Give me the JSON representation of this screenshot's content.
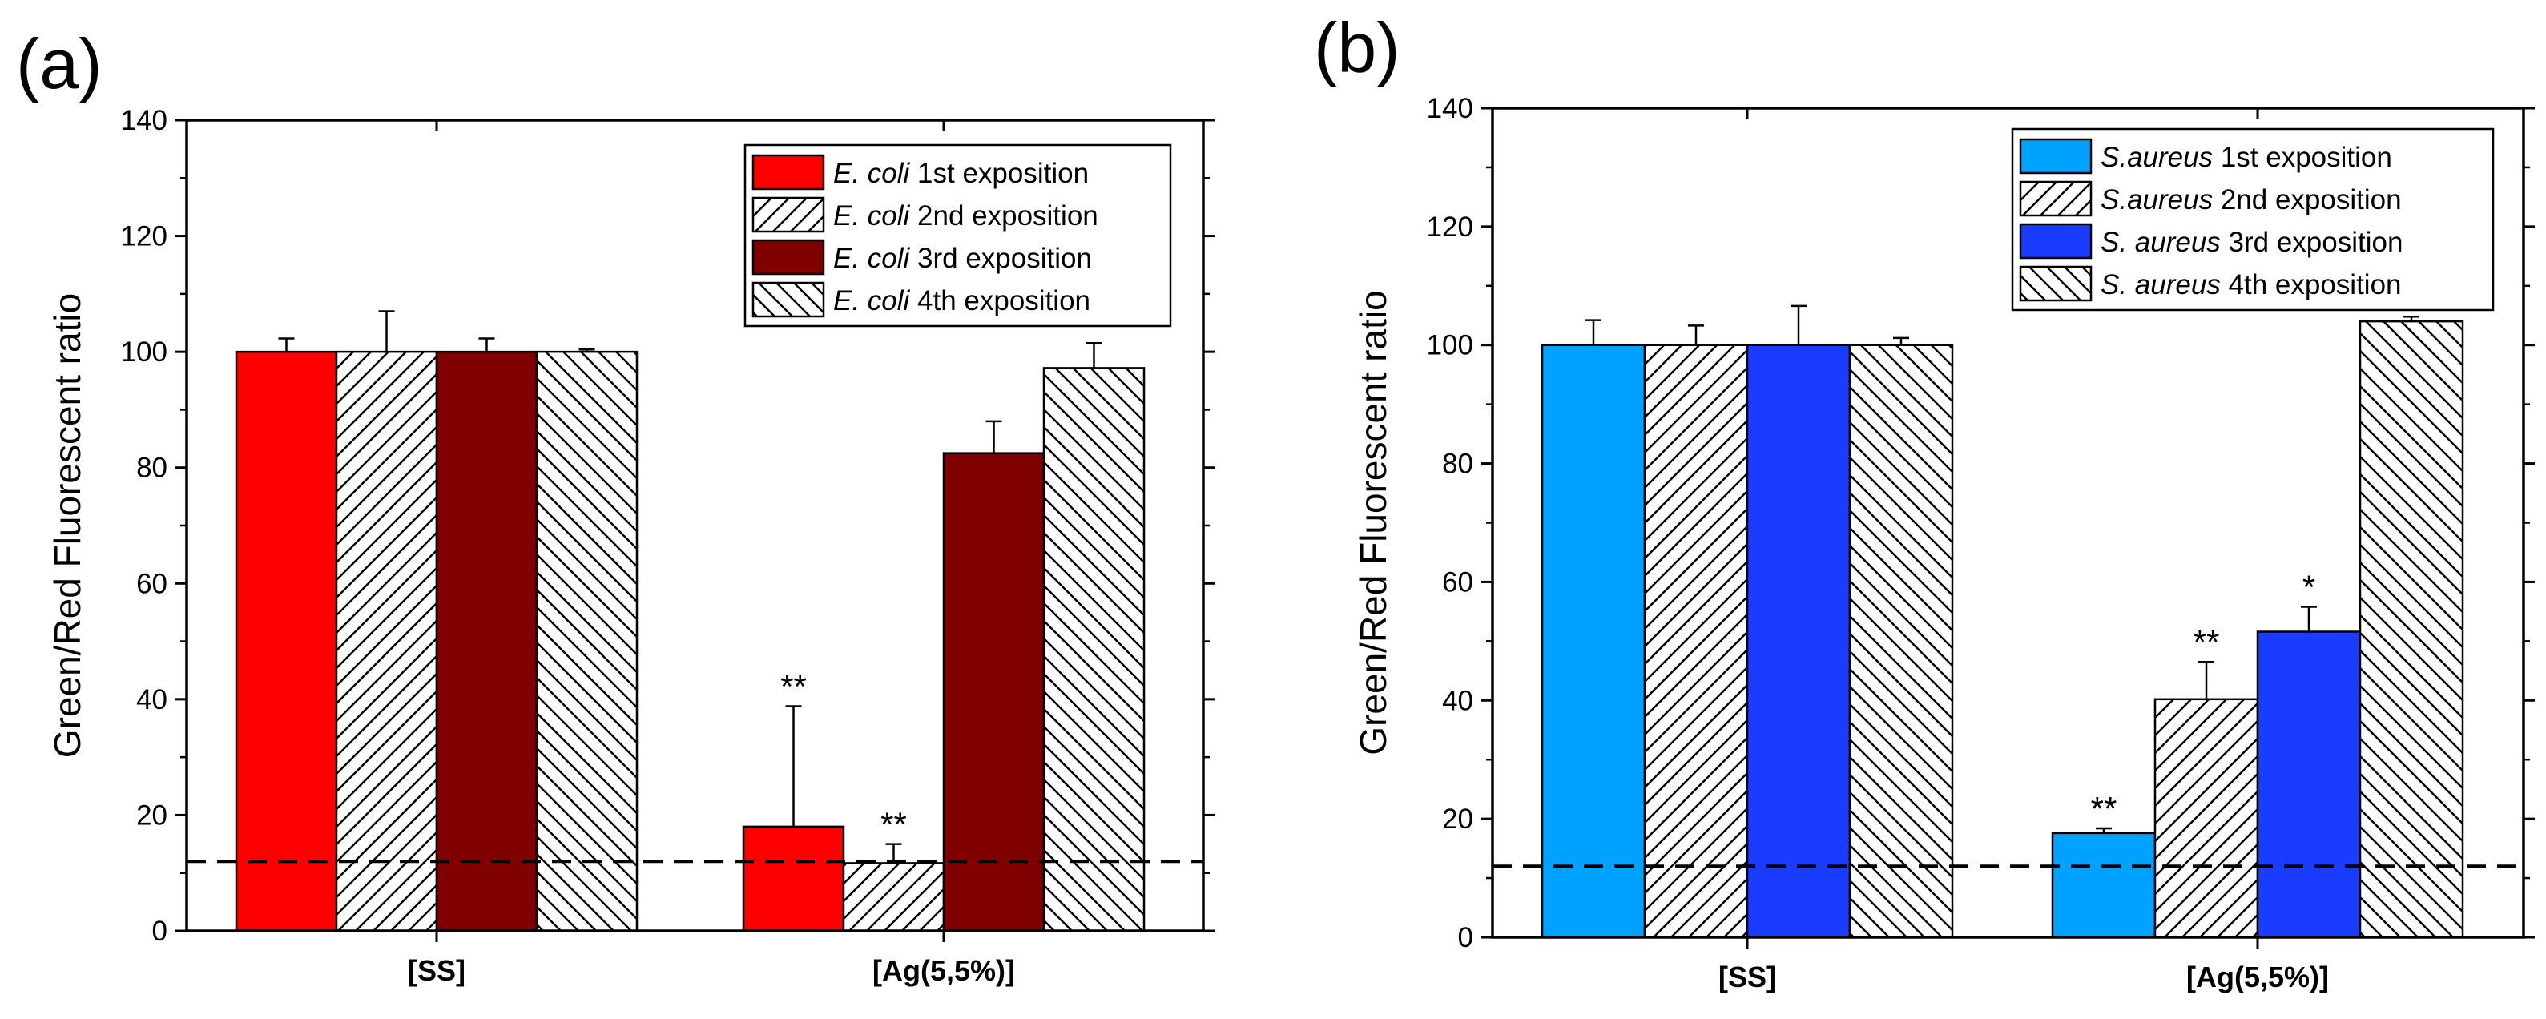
{
  "chart_data": [
    {
      "type": "bar",
      "panel_label": "(a)",
      "ylabel": "Green/Red Fluorescent ratio",
      "xlabel": "",
      "ylim": [
        0,
        140
      ],
      "yticks": [
        "0",
        "20",
        "40",
        "60",
        "80",
        "100",
        "120",
        "140"
      ],
      "categories": [
        "[SS]",
        "[Ag(5,5%)]"
      ],
      "reference_line": 12,
      "legend_position": "top-right",
      "series": [
        {
          "name": "E. coli 1st exposition",
          "species": "E. coli",
          "suffix": " 1st exposition",
          "fill": "solid",
          "color": "#ff0000",
          "values": [
            100,
            18
          ],
          "errors": [
            2.3,
            20.8
          ],
          "significance": [
            "",
            "**"
          ]
        },
        {
          "name": "E. coli 2nd exposition",
          "species": "E. coli",
          "suffix": " 2nd exposition",
          "fill": "hatch-forward",
          "color": "#ffffff",
          "values": [
            100,
            11.7
          ],
          "errors": [
            7,
            3.3
          ],
          "significance": [
            "",
            "**"
          ]
        },
        {
          "name": "E. coli 3rd exposition",
          "species": "E. coli",
          "suffix": " 3rd exposition",
          "fill": "solid",
          "color": "#800000",
          "values": [
            100,
            82.5
          ],
          "errors": [
            2.3,
            5.5
          ],
          "significance": [
            "",
            ""
          ]
        },
        {
          "name": "E. coli 4th exposition",
          "species": "E. coli",
          "suffix": " 4th exposition",
          "fill": "hatch-back",
          "color": "#ffffff",
          "values": [
            100,
            97.2
          ],
          "errors": [
            0.4,
            4.3
          ],
          "significance": [
            "",
            ""
          ]
        }
      ]
    },
    {
      "type": "bar",
      "panel_label": "(b)",
      "ylabel": "Green/Red Fluorescent ratio",
      "xlabel": "",
      "ylim": [
        0,
        140
      ],
      "yticks": [
        "0",
        "20",
        "40",
        "60",
        "80",
        "100",
        "120",
        "140"
      ],
      "categories": [
        "[SS]",
        "[Ag(5,5%)]"
      ],
      "reference_line": 12,
      "legend_position": "top-right",
      "series": [
        {
          "name": "S.aureus 1st exposition",
          "species": "S.aureus",
          "suffix": " 1st exposition",
          "fill": "solid",
          "color": "#00a2ff",
          "values": [
            100,
            17.6
          ],
          "errors": [
            4.2,
            0.8
          ],
          "significance": [
            "",
            "**"
          ]
        },
        {
          "name": "S.aureus 2nd exposition",
          "species": "S.aureus",
          "suffix": " 2nd exposition",
          "fill": "hatch-forward",
          "color": "#ffffff",
          "values": [
            100,
            40.2
          ],
          "errors": [
            3.3,
            6.3
          ],
          "significance": [
            "",
            "**"
          ]
        },
        {
          "name": "S. aureus 3rd exposition",
          "species": "S. aureus",
          "suffix": " 3rd exposition",
          "fill": "solid",
          "color": "#1a3cff",
          "values": [
            100,
            51.6
          ],
          "errors": [
            6.6,
            4.2
          ],
          "significance": [
            "",
            "*"
          ]
        },
        {
          "name": "S. aureus 4th exposition",
          "species": "S. aureus",
          "suffix": " 4th exposition",
          "fill": "hatch-back",
          "color": "#ffffff",
          "values": [
            100,
            104
          ],
          "errors": [
            1.2,
            0.8
          ],
          "significance": [
            "",
            ""
          ]
        }
      ]
    }
  ]
}
